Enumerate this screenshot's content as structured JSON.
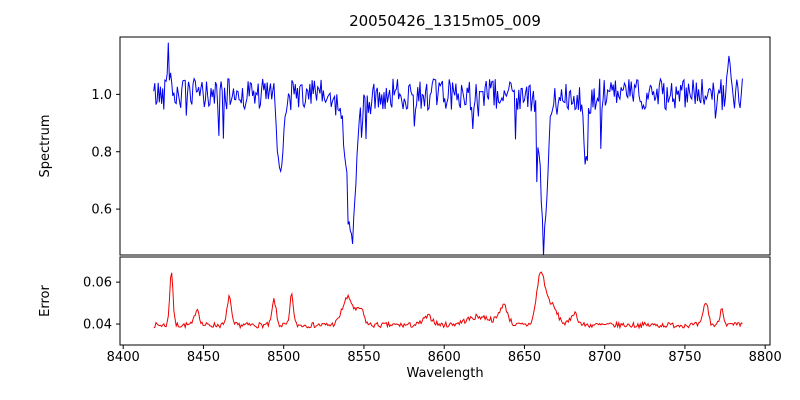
{
  "figure": {
    "background": "#ffffff",
    "axis_color": "#000000"
  },
  "chart_data": {
    "type": "line",
    "title": "20050426_1315m05_009",
    "xlabel": "Wavelength",
    "grid": false,
    "legend": "none",
    "x_axis_lim": [
      8398,
      8803
    ],
    "x_data_range": [
      8419,
      8786
    ],
    "sample_step": 0.7,
    "x_ticks": [
      {
        "value": 8400,
        "label": "8400"
      },
      {
        "value": 8450,
        "label": "8450"
      },
      {
        "value": 8500,
        "label": "8500"
      },
      {
        "value": 8550,
        "label": "8550"
      },
      {
        "value": 8600,
        "label": "8600"
      },
      {
        "value": 8650,
        "label": "8650"
      },
      {
        "value": 8700,
        "label": "8700"
      },
      {
        "value": 8750,
        "label": "8750"
      },
      {
        "value": 8800,
        "label": "8800"
      }
    ],
    "subplots": [
      {
        "name": "spectrum",
        "ylabel": "Spectrum",
        "line_color": "#0000ee",
        "ylim": [
          0.44,
          1.2
        ],
        "y_ticks": [
          {
            "value": 1.0,
            "label": "1.0"
          },
          {
            "value": 0.8,
            "label": "0.8"
          },
          {
            "value": 0.6,
            "label": "0.6"
          }
        ],
        "baseline": 1.0,
        "noise_amplitude": 0.055,
        "spike_probability": 0.05,
        "spike_max_depth": 0.24,
        "seed": 42,
        "absorption_lines": [
          {
            "center": 8498.0,
            "depth": 0.3,
            "width": 1.6
          },
          {
            "center": 8542.1,
            "depth": 0.43,
            "width": 2.3
          },
          {
            "center": 8542.1,
            "depth": 0.1,
            "width": 7.0
          },
          {
            "center": 8662.1,
            "depth": 0.44,
            "width": 2.0
          },
          {
            "center": 8662.1,
            "depth": 0.08,
            "width": 5.0
          },
          {
            "center": 8688.0,
            "depth": 0.27,
            "width": 1.3
          }
        ],
        "emission_peaks": [
          {
            "center": 8428.0,
            "height": 0.15,
            "width": 0.9
          },
          {
            "center": 8777.0,
            "height": 0.12,
            "width": 0.9
          }
        ]
      },
      {
        "name": "error",
        "ylabel": "Error",
        "line_color": "#ee0000",
        "ylim": [
          0.03,
          0.072
        ],
        "y_ticks": [
          {
            "value": 0.06,
            "label": "0.06"
          },
          {
            "value": 0.04,
            "label": "0.04"
          }
        ],
        "baseline": 0.0395,
        "noise_amplitude": 0.0013,
        "seed": 7,
        "emission_peaks": [
          {
            "center": 8430,
            "height": 0.026,
            "width": 1.0
          },
          {
            "center": 8446,
            "height": 0.008,
            "width": 1.4
          },
          {
            "center": 8466,
            "height": 0.014,
            "width": 1.2
          },
          {
            "center": 8494,
            "height": 0.012,
            "width": 1.2
          },
          {
            "center": 8505,
            "height": 0.015,
            "width": 1.0
          },
          {
            "center": 8540,
            "height": 0.013,
            "width": 3.5
          },
          {
            "center": 8548,
            "height": 0.007,
            "width": 2.0
          },
          {
            "center": 8590,
            "height": 0.004,
            "width": 3.0
          },
          {
            "center": 8622,
            "height": 0.004,
            "width": 8.0
          },
          {
            "center": 8637,
            "height": 0.009,
            "width": 2.5
          },
          {
            "center": 8660,
            "height": 0.022,
            "width": 2.5
          },
          {
            "center": 8666,
            "height": 0.01,
            "width": 4.0
          },
          {
            "center": 8681,
            "height": 0.006,
            "width": 2.0
          },
          {
            "center": 8763,
            "height": 0.011,
            "width": 1.5
          },
          {
            "center": 8773,
            "height": 0.008,
            "width": 1.2
          }
        ]
      }
    ]
  }
}
